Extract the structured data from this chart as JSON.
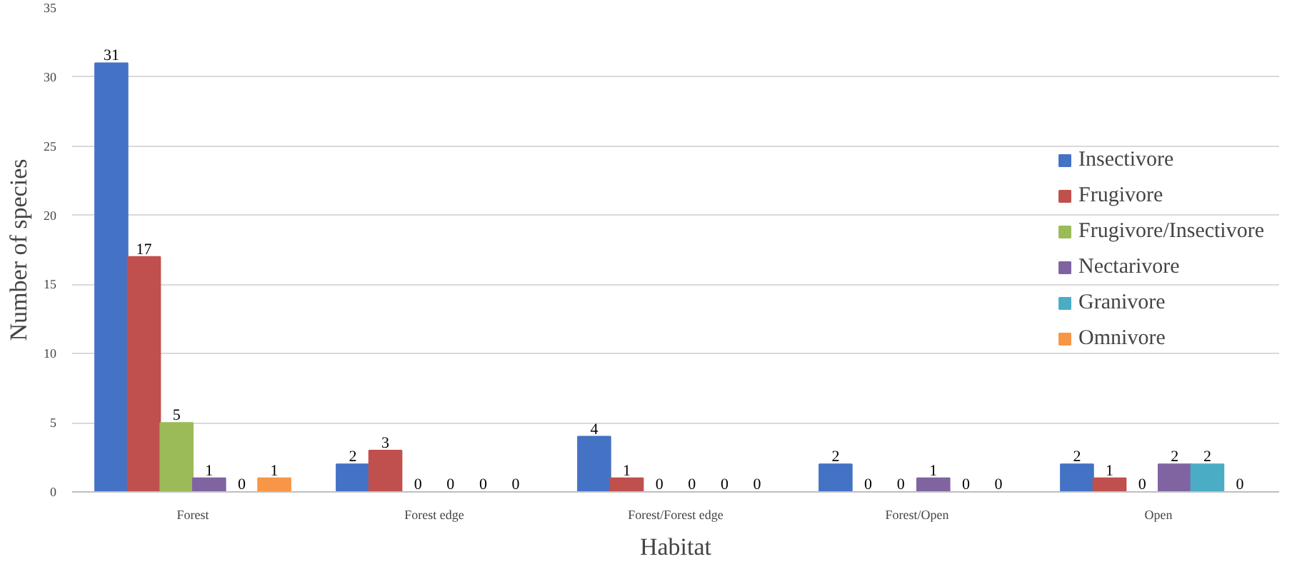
{
  "chart_data": {
    "type": "bar",
    "xlabel": "Habitat",
    "ylabel": "Number of species",
    "categories": [
      "Forest",
      "Forest edge",
      "Forest/Forest edge",
      "Forest/Open",
      "Open"
    ],
    "series": [
      {
        "name": "Insectivore",
        "color": "#4472c4",
        "values": [
          31,
          2,
          4,
          2,
          2
        ]
      },
      {
        "name": "Frugivore",
        "color": "#c0504d",
        "values": [
          17,
          3,
          1,
          0,
          1
        ]
      },
      {
        "name": "Frugivore/Insectivore",
        "color": "#9bbb59",
        "values": [
          5,
          0,
          0,
          0,
          0
        ]
      },
      {
        "name": "Nectarivore",
        "color": "#8064a2",
        "values": [
          1,
          0,
          0,
          1,
          2
        ]
      },
      {
        "name": "Granivore",
        "color": "#4bacc6",
        "values": [
          0,
          0,
          0,
          0,
          2
        ]
      },
      {
        "name": "Omnivore",
        "color": "#f79646",
        "values": [
          1,
          0,
          0,
          0,
          0
        ]
      }
    ],
    "ylim": [
      0,
      35
    ],
    "yticks": [
      0,
      5,
      10,
      15,
      20,
      25,
      30,
      35
    ],
    "grid": "y",
    "legend": "right",
    "data_labels": true
  }
}
